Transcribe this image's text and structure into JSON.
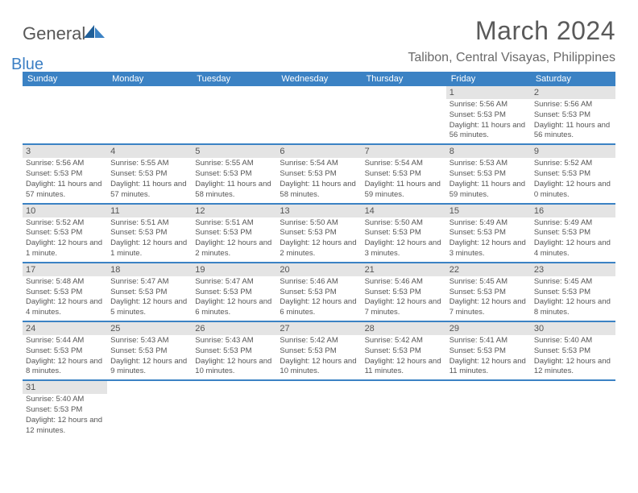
{
  "logo": {
    "brand_a": "General",
    "brand_b": "Blue"
  },
  "title": "March 2024",
  "location": "Talibon, Central Visayas, Philippines",
  "colors": {
    "header_bg": "#3b82c4",
    "header_text": "#ffffff",
    "daybar_bg": "#e4e4e4",
    "text": "#555555",
    "divider": "#3b82c4",
    "page_bg": "#ffffff"
  },
  "typography": {
    "title_fontsize": 32,
    "location_fontsize": 16,
    "weekday_fontsize": 11,
    "daynum_fontsize": 11,
    "body_fontsize": 9.5
  },
  "layout": {
    "columns": 7,
    "first_day_column": 5
  },
  "weekdays": [
    "Sunday",
    "Monday",
    "Tuesday",
    "Wednesday",
    "Thursday",
    "Friday",
    "Saturday"
  ],
  "days": [
    {
      "n": 1,
      "sunrise": "5:56 AM",
      "sunset": "5:53 PM",
      "daylight": "11 hours and 56 minutes."
    },
    {
      "n": 2,
      "sunrise": "5:56 AM",
      "sunset": "5:53 PM",
      "daylight": "11 hours and 56 minutes."
    },
    {
      "n": 3,
      "sunrise": "5:56 AM",
      "sunset": "5:53 PM",
      "daylight": "11 hours and 57 minutes."
    },
    {
      "n": 4,
      "sunrise": "5:55 AM",
      "sunset": "5:53 PM",
      "daylight": "11 hours and 57 minutes."
    },
    {
      "n": 5,
      "sunrise": "5:55 AM",
      "sunset": "5:53 PM",
      "daylight": "11 hours and 58 minutes."
    },
    {
      "n": 6,
      "sunrise": "5:54 AM",
      "sunset": "5:53 PM",
      "daylight": "11 hours and 58 minutes."
    },
    {
      "n": 7,
      "sunrise": "5:54 AM",
      "sunset": "5:53 PM",
      "daylight": "11 hours and 59 minutes."
    },
    {
      "n": 8,
      "sunrise": "5:53 AM",
      "sunset": "5:53 PM",
      "daylight": "11 hours and 59 minutes."
    },
    {
      "n": 9,
      "sunrise": "5:52 AM",
      "sunset": "5:53 PM",
      "daylight": "12 hours and 0 minutes."
    },
    {
      "n": 10,
      "sunrise": "5:52 AM",
      "sunset": "5:53 PM",
      "daylight": "12 hours and 1 minute."
    },
    {
      "n": 11,
      "sunrise": "5:51 AM",
      "sunset": "5:53 PM",
      "daylight": "12 hours and 1 minute."
    },
    {
      "n": 12,
      "sunrise": "5:51 AM",
      "sunset": "5:53 PM",
      "daylight": "12 hours and 2 minutes."
    },
    {
      "n": 13,
      "sunrise": "5:50 AM",
      "sunset": "5:53 PM",
      "daylight": "12 hours and 2 minutes."
    },
    {
      "n": 14,
      "sunrise": "5:50 AM",
      "sunset": "5:53 PM",
      "daylight": "12 hours and 3 minutes."
    },
    {
      "n": 15,
      "sunrise": "5:49 AM",
      "sunset": "5:53 PM",
      "daylight": "12 hours and 3 minutes."
    },
    {
      "n": 16,
      "sunrise": "5:49 AM",
      "sunset": "5:53 PM",
      "daylight": "12 hours and 4 minutes."
    },
    {
      "n": 17,
      "sunrise": "5:48 AM",
      "sunset": "5:53 PM",
      "daylight": "12 hours and 4 minutes."
    },
    {
      "n": 18,
      "sunrise": "5:47 AM",
      "sunset": "5:53 PM",
      "daylight": "12 hours and 5 minutes."
    },
    {
      "n": 19,
      "sunrise": "5:47 AM",
      "sunset": "5:53 PM",
      "daylight": "12 hours and 6 minutes."
    },
    {
      "n": 20,
      "sunrise": "5:46 AM",
      "sunset": "5:53 PM",
      "daylight": "12 hours and 6 minutes."
    },
    {
      "n": 21,
      "sunrise": "5:46 AM",
      "sunset": "5:53 PM",
      "daylight": "12 hours and 7 minutes."
    },
    {
      "n": 22,
      "sunrise": "5:45 AM",
      "sunset": "5:53 PM",
      "daylight": "12 hours and 7 minutes."
    },
    {
      "n": 23,
      "sunrise": "5:45 AM",
      "sunset": "5:53 PM",
      "daylight": "12 hours and 8 minutes."
    },
    {
      "n": 24,
      "sunrise": "5:44 AM",
      "sunset": "5:53 PM",
      "daylight": "12 hours and 8 minutes."
    },
    {
      "n": 25,
      "sunrise": "5:43 AM",
      "sunset": "5:53 PM",
      "daylight": "12 hours and 9 minutes."
    },
    {
      "n": 26,
      "sunrise": "5:43 AM",
      "sunset": "5:53 PM",
      "daylight": "12 hours and 10 minutes."
    },
    {
      "n": 27,
      "sunrise": "5:42 AM",
      "sunset": "5:53 PM",
      "daylight": "12 hours and 10 minutes."
    },
    {
      "n": 28,
      "sunrise": "5:42 AM",
      "sunset": "5:53 PM",
      "daylight": "12 hours and 11 minutes."
    },
    {
      "n": 29,
      "sunrise": "5:41 AM",
      "sunset": "5:53 PM",
      "daylight": "12 hours and 11 minutes."
    },
    {
      "n": 30,
      "sunrise": "5:40 AM",
      "sunset": "5:53 PM",
      "daylight": "12 hours and 12 minutes."
    },
    {
      "n": 31,
      "sunrise": "5:40 AM",
      "sunset": "5:53 PM",
      "daylight": "12 hours and 12 minutes."
    }
  ],
  "labels": {
    "sunrise": "Sunrise: ",
    "sunset": "Sunset: ",
    "daylight": "Daylight: "
  }
}
